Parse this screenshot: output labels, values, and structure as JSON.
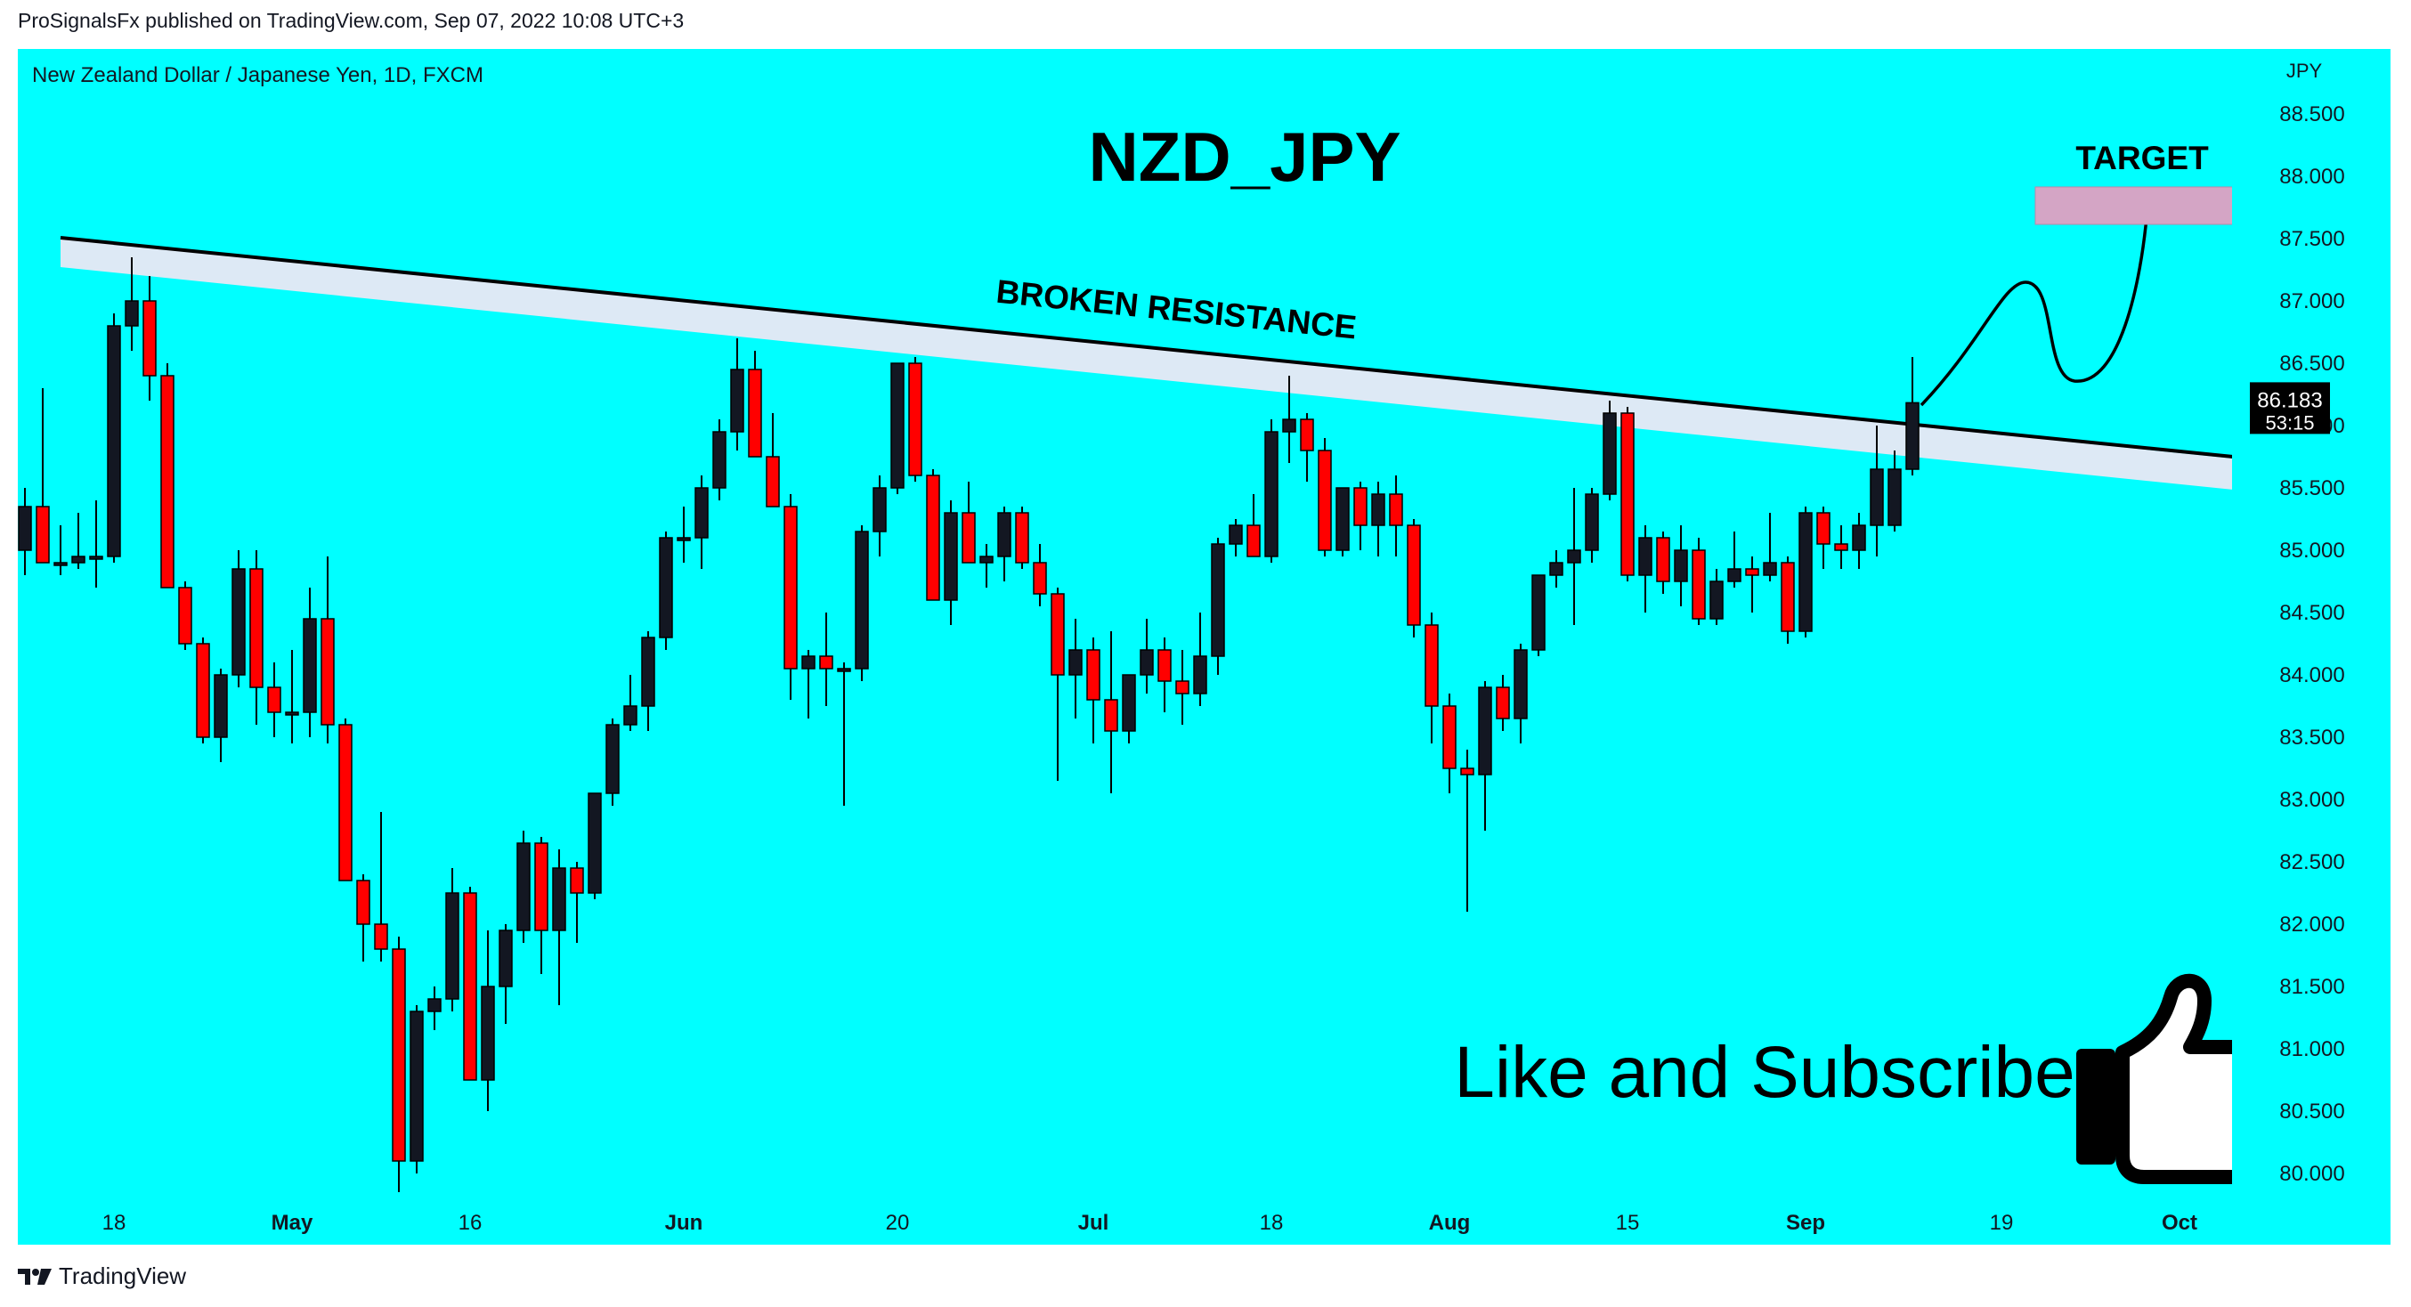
{
  "header": {
    "published": "ProSignalsFx published on TradingView.com, Sep 07, 2022 10:08 UTC+3"
  },
  "instrument_line": "New Zealand Dollar / Japanese Yen, 1D, FXCM",
  "footer": {
    "brand": "TradingView"
  },
  "colors": {
    "background": "#00ffff",
    "up_candle": "#131722",
    "down_candle": "#ff0000",
    "zone": "#dde9f5",
    "target_box": "#d4a5c5"
  },
  "annotations": {
    "title": "NZD_JPY",
    "resistance_label": "BROKEN RESISTANCE",
    "target_label": "TARGET",
    "cta": "Like and Subscribe"
  },
  "chart_data": {
    "type": "candlestick",
    "title": "NZD_JPY",
    "y_axis_label": "JPY",
    "ylim": [
      79.6,
      88.7
    ],
    "y_ticks": [
      "88.500",
      "88.000",
      "87.500",
      "87.000",
      "86.500",
      "86.000",
      "85.500",
      "85.000",
      "84.500",
      "84.000",
      "83.500",
      "83.000",
      "82.500",
      "82.000",
      "81.500",
      "81.000",
      "80.500",
      "80.000"
    ],
    "x_ticks": [
      "18",
      "May",
      "16",
      "Jun",
      "20",
      "Jul",
      "18",
      "Aug",
      "15",
      "Sep",
      "19",
      "Oct"
    ],
    "last_price": {
      "value": "86.183",
      "countdown": "53:15"
    },
    "candles": [
      {
        "date": "2022-04-11",
        "o": 85.0,
        "h": 85.5,
        "l": 84.8,
        "c": 85.35
      },
      {
        "date": "2022-04-12",
        "o": 85.35,
        "h": 86.3,
        "l": 84.95,
        "c": 84.9
      },
      {
        "date": "2022-04-13",
        "o": 84.9,
        "h": 85.2,
        "l": 84.8,
        "c": 84.9
      },
      {
        "date": "2022-04-14",
        "o": 84.9,
        "h": 85.3,
        "l": 84.85,
        "c": 84.95
      },
      {
        "date": "2022-04-15",
        "o": 84.95,
        "h": 85.4,
        "l": 84.7,
        "c": 84.95
      },
      {
        "date": "2022-04-18",
        "o": 84.95,
        "h": 86.9,
        "l": 84.9,
        "c": 86.8
      },
      {
        "date": "2022-04-19",
        "o": 86.8,
        "h": 87.35,
        "l": 86.6,
        "c": 87.0
      },
      {
        "date": "2022-04-20",
        "o": 87.0,
        "h": 87.2,
        "l": 86.2,
        "c": 86.4
      },
      {
        "date": "2022-04-21",
        "o": 86.4,
        "h": 86.5,
        "l": 84.7,
        "c": 84.7
      },
      {
        "date": "2022-04-22",
        "o": 84.7,
        "h": 84.75,
        "l": 84.2,
        "c": 84.25
      },
      {
        "date": "2022-04-25",
        "o": 84.25,
        "h": 84.3,
        "l": 83.45,
        "c": 83.5
      },
      {
        "date": "2022-04-26",
        "o": 83.5,
        "h": 84.05,
        "l": 83.3,
        "c": 84.0
      },
      {
        "date": "2022-04-27",
        "o": 84.0,
        "h": 85.0,
        "l": 83.9,
        "c": 84.85
      },
      {
        "date": "2022-04-28",
        "o": 84.85,
        "h": 85.0,
        "l": 83.6,
        "c": 83.9
      },
      {
        "date": "2022-04-29",
        "o": 83.9,
        "h": 84.1,
        "l": 83.5,
        "c": 83.7
      },
      {
        "date": "2022-05-02",
        "o": 83.7,
        "h": 84.2,
        "l": 83.45,
        "c": 83.7
      },
      {
        "date": "2022-05-03",
        "o": 83.7,
        "h": 84.7,
        "l": 83.5,
        "c": 84.45
      },
      {
        "date": "2022-05-04",
        "o": 84.45,
        "h": 84.95,
        "l": 83.45,
        "c": 83.6
      },
      {
        "date": "2022-05-05",
        "o": 83.6,
        "h": 83.65,
        "l": 82.35,
        "c": 82.35
      },
      {
        "date": "2022-05-06",
        "o": 82.35,
        "h": 82.4,
        "l": 81.7,
        "c": 82.0
      },
      {
        "date": "2022-05-09",
        "o": 82.0,
        "h": 82.9,
        "l": 81.7,
        "c": 81.8
      },
      {
        "date": "2022-05-10",
        "o": 81.8,
        "h": 81.9,
        "l": 79.85,
        "c": 80.1
      },
      {
        "date": "2022-05-11",
        "o": 80.1,
        "h": 81.35,
        "l": 80.0,
        "c": 81.3
      },
      {
        "date": "2022-05-12",
        "o": 81.3,
        "h": 81.5,
        "l": 81.15,
        "c": 81.4
      },
      {
        "date": "2022-05-13",
        "o": 81.4,
        "h": 82.45,
        "l": 81.3,
        "c": 82.25
      },
      {
        "date": "2022-05-16",
        "o": 82.25,
        "h": 82.3,
        "l": 80.75,
        "c": 80.75
      },
      {
        "date": "2022-05-17",
        "o": 80.75,
        "h": 81.95,
        "l": 80.5,
        "c": 81.5
      },
      {
        "date": "2022-05-18",
        "o": 81.5,
        "h": 82.0,
        "l": 81.2,
        "c": 81.95
      },
      {
        "date": "2022-05-19",
        "o": 81.95,
        "h": 82.75,
        "l": 81.85,
        "c": 82.65
      },
      {
        "date": "2022-05-20",
        "o": 82.65,
        "h": 82.7,
        "l": 81.6,
        "c": 81.95
      },
      {
        "date": "2022-05-23",
        "o": 81.95,
        "h": 82.6,
        "l": 81.35,
        "c": 82.45
      },
      {
        "date": "2022-05-24",
        "o": 82.45,
        "h": 82.5,
        "l": 81.85,
        "c": 82.25
      },
      {
        "date": "2022-05-25",
        "o": 82.25,
        "h": 83.05,
        "l": 82.2,
        "c": 83.05
      },
      {
        "date": "2022-05-26",
        "o": 83.05,
        "h": 83.65,
        "l": 82.95,
        "c": 83.6
      },
      {
        "date": "2022-05-27",
        "o": 83.6,
        "h": 84.0,
        "l": 83.55,
        "c": 83.75
      },
      {
        "date": "2022-05-30",
        "o": 83.75,
        "h": 84.35,
        "l": 83.55,
        "c": 84.3
      },
      {
        "date": "2022-05-31",
        "o": 84.3,
        "h": 85.15,
        "l": 84.2,
        "c": 85.1
      },
      {
        "date": "2022-06-01",
        "o": 85.1,
        "h": 85.35,
        "l": 84.9,
        "c": 85.1
      },
      {
        "date": "2022-06-02",
        "o": 85.1,
        "h": 85.6,
        "l": 84.85,
        "c": 85.5
      },
      {
        "date": "2022-06-03",
        "o": 85.5,
        "h": 86.05,
        "l": 85.4,
        "c": 85.95
      },
      {
        "date": "2022-06-06",
        "o": 85.95,
        "h": 86.7,
        "l": 85.8,
        "c": 86.45
      },
      {
        "date": "2022-06-07",
        "o": 86.45,
        "h": 86.6,
        "l": 85.8,
        "c": 85.75
      },
      {
        "date": "2022-06-08",
        "o": 85.75,
        "h": 86.1,
        "l": 85.4,
        "c": 85.35
      },
      {
        "date": "2022-06-09",
        "o": 85.35,
        "h": 85.45,
        "l": 83.8,
        "c": 84.05
      },
      {
        "date": "2022-06-10",
        "o": 84.05,
        "h": 84.2,
        "l": 83.65,
        "c": 84.15
      },
      {
        "date": "2022-06-13",
        "o": 84.15,
        "h": 84.5,
        "l": 83.75,
        "c": 84.05
      },
      {
        "date": "2022-06-14",
        "o": 84.05,
        "h": 84.1,
        "l": 82.95,
        "c": 84.05
      },
      {
        "date": "2022-06-15",
        "o": 84.05,
        "h": 85.2,
        "l": 83.95,
        "c": 85.15
      },
      {
        "date": "2022-06-16",
        "o": 85.15,
        "h": 85.6,
        "l": 84.95,
        "c": 85.5
      },
      {
        "date": "2022-06-17",
        "o": 85.5,
        "h": 86.5,
        "l": 85.45,
        "c": 86.5
      },
      {
        "date": "2022-06-20",
        "o": 86.5,
        "h": 86.55,
        "l": 85.55,
        "c": 85.6
      },
      {
        "date": "2022-06-21",
        "o": 85.6,
        "h": 85.65,
        "l": 84.6,
        "c": 84.6
      },
      {
        "date": "2022-06-22",
        "o": 84.6,
        "h": 85.4,
        "l": 84.4,
        "c": 85.3
      },
      {
        "date": "2022-06-23",
        "o": 85.3,
        "h": 85.55,
        "l": 84.9,
        "c": 84.9
      },
      {
        "date": "2022-06-24",
        "o": 84.9,
        "h": 85.05,
        "l": 84.7,
        "c": 84.95
      },
      {
        "date": "2022-06-27",
        "o": 84.95,
        "h": 85.35,
        "l": 84.75,
        "c": 85.3
      },
      {
        "date": "2022-06-28",
        "o": 85.3,
        "h": 85.35,
        "l": 84.85,
        "c": 84.9
      },
      {
        "date": "2022-06-29",
        "o": 84.9,
        "h": 85.05,
        "l": 84.55,
        "c": 84.65
      },
      {
        "date": "2022-06-30",
        "o": 84.65,
        "h": 84.7,
        "l": 83.15,
        "c": 84.0
      },
      {
        "date": "2022-07-01",
        "o": 84.0,
        "h": 84.45,
        "l": 83.65,
        "c": 84.2
      },
      {
        "date": "2022-07-04",
        "o": 84.2,
        "h": 84.3,
        "l": 83.45,
        "c": 83.8
      },
      {
        "date": "2022-07-05",
        "o": 83.8,
        "h": 84.35,
        "l": 83.05,
        "c": 83.55
      },
      {
        "date": "2022-07-06",
        "o": 83.55,
        "h": 84.0,
        "l": 83.45,
        "c": 84.0
      },
      {
        "date": "2022-07-07",
        "o": 84.0,
        "h": 84.45,
        "l": 83.85,
        "c": 84.2
      },
      {
        "date": "2022-07-08",
        "o": 84.2,
        "h": 84.3,
        "l": 83.7,
        "c": 83.95
      },
      {
        "date": "2022-07-11",
        "o": 83.95,
        "h": 84.2,
        "l": 83.6,
        "c": 83.85
      },
      {
        "date": "2022-07-12",
        "o": 83.85,
        "h": 84.5,
        "l": 83.75,
        "c": 84.15
      },
      {
        "date": "2022-07-13",
        "o": 84.15,
        "h": 85.1,
        "l": 84.0,
        "c": 85.05
      },
      {
        "date": "2022-07-14",
        "o": 85.05,
        "h": 85.25,
        "l": 84.95,
        "c": 85.2
      },
      {
        "date": "2022-07-15",
        "o": 85.2,
        "h": 85.45,
        "l": 84.95,
        "c": 84.95
      },
      {
        "date": "2022-07-18",
        "o": 84.95,
        "h": 86.05,
        "l": 84.9,
        "c": 85.95
      },
      {
        "date": "2022-07-19",
        "o": 85.95,
        "h": 86.4,
        "l": 85.7,
        "c": 86.05
      },
      {
        "date": "2022-07-20",
        "o": 86.05,
        "h": 86.1,
        "l": 85.55,
        "c": 85.8
      },
      {
        "date": "2022-07-21",
        "o": 85.8,
        "h": 85.9,
        "l": 84.95,
        "c": 85.0
      },
      {
        "date": "2022-07-22",
        "o": 85.0,
        "h": 85.5,
        "l": 84.95,
        "c": 85.5
      },
      {
        "date": "2022-07-25",
        "o": 85.5,
        "h": 85.55,
        "l": 85.0,
        "c": 85.2
      },
      {
        "date": "2022-07-26",
        "o": 85.2,
        "h": 85.55,
        "l": 84.95,
        "c": 85.45
      },
      {
        "date": "2022-07-27",
        "o": 85.45,
        "h": 85.6,
        "l": 84.95,
        "c": 85.2
      },
      {
        "date": "2022-07-28",
        "o": 85.2,
        "h": 85.25,
        "l": 84.3,
        "c": 84.4
      },
      {
        "date": "2022-07-29",
        "o": 84.4,
        "h": 84.5,
        "l": 83.45,
        "c": 83.75
      },
      {
        "date": "2022-08-01",
        "o": 83.75,
        "h": 83.85,
        "l": 83.05,
        "c": 83.25
      },
      {
        "date": "2022-08-02",
        "o": 83.25,
        "h": 83.4,
        "l": 82.1,
        "c": 83.2
      },
      {
        "date": "2022-08-03",
        "o": 83.2,
        "h": 83.95,
        "l": 82.75,
        "c": 83.9
      },
      {
        "date": "2022-08-04",
        "o": 83.9,
        "h": 84.0,
        "l": 83.55,
        "c": 83.65
      },
      {
        "date": "2022-08-05",
        "o": 83.65,
        "h": 84.25,
        "l": 83.45,
        "c": 84.2
      },
      {
        "date": "2022-08-08",
        "o": 84.2,
        "h": 84.8,
        "l": 84.15,
        "c": 84.8
      },
      {
        "date": "2022-08-09",
        "o": 84.8,
        "h": 85.0,
        "l": 84.7,
        "c": 84.9
      },
      {
        "date": "2022-08-10",
        "o": 84.9,
        "h": 85.5,
        "l": 84.4,
        "c": 85.0
      },
      {
        "date": "2022-08-11",
        "o": 85.0,
        "h": 85.5,
        "l": 84.9,
        "c": 85.45
      },
      {
        "date": "2022-08-12",
        "o": 85.45,
        "h": 86.2,
        "l": 85.4,
        "c": 86.1
      },
      {
        "date": "2022-08-15",
        "o": 86.1,
        "h": 86.15,
        "l": 84.75,
        "c": 84.8
      },
      {
        "date": "2022-08-16",
        "o": 84.8,
        "h": 85.2,
        "l": 84.5,
        "c": 85.1
      },
      {
        "date": "2022-08-17",
        "o": 85.1,
        "h": 85.15,
        "l": 84.65,
        "c": 84.75
      },
      {
        "date": "2022-08-18",
        "o": 84.75,
        "h": 85.2,
        "l": 84.55,
        "c": 85.0
      },
      {
        "date": "2022-08-19",
        "o": 85.0,
        "h": 85.1,
        "l": 84.4,
        "c": 84.45
      },
      {
        "date": "2022-08-22",
        "o": 84.45,
        "h": 84.85,
        "l": 84.4,
        "c": 84.75
      },
      {
        "date": "2022-08-23",
        "o": 84.75,
        "h": 85.15,
        "l": 84.7,
        "c": 84.85
      },
      {
        "date": "2022-08-24",
        "o": 84.85,
        "h": 84.95,
        "l": 84.5,
        "c": 84.8
      },
      {
        "date": "2022-08-25",
        "o": 84.8,
        "h": 85.3,
        "l": 84.75,
        "c": 84.9
      },
      {
        "date": "2022-08-26",
        "o": 84.9,
        "h": 84.95,
        "l": 84.25,
        "c": 84.35
      },
      {
        "date": "2022-08-29",
        "o": 84.35,
        "h": 85.35,
        "l": 84.3,
        "c": 85.3
      },
      {
        "date": "2022-08-30",
        "o": 85.3,
        "h": 85.35,
        "l": 84.85,
        "c": 85.05
      },
      {
        "date": "2022-08-31",
        "o": 85.05,
        "h": 85.2,
        "l": 84.85,
        "c": 85.0
      },
      {
        "date": "2022-09-01",
        "o": 85.0,
        "h": 85.3,
        "l": 84.85,
        "c": 85.2
      },
      {
        "date": "2022-09-02",
        "o": 85.2,
        "h": 86.0,
        "l": 84.95,
        "c": 85.65
      },
      {
        "date": "2022-09-05",
        "o": 85.2,
        "h": 85.8,
        "l": 85.15,
        "c": 85.65
      },
      {
        "date": "2022-09-06",
        "o": 85.65,
        "h": 86.55,
        "l": 85.6,
        "c": 86.183
      }
    ]
  }
}
